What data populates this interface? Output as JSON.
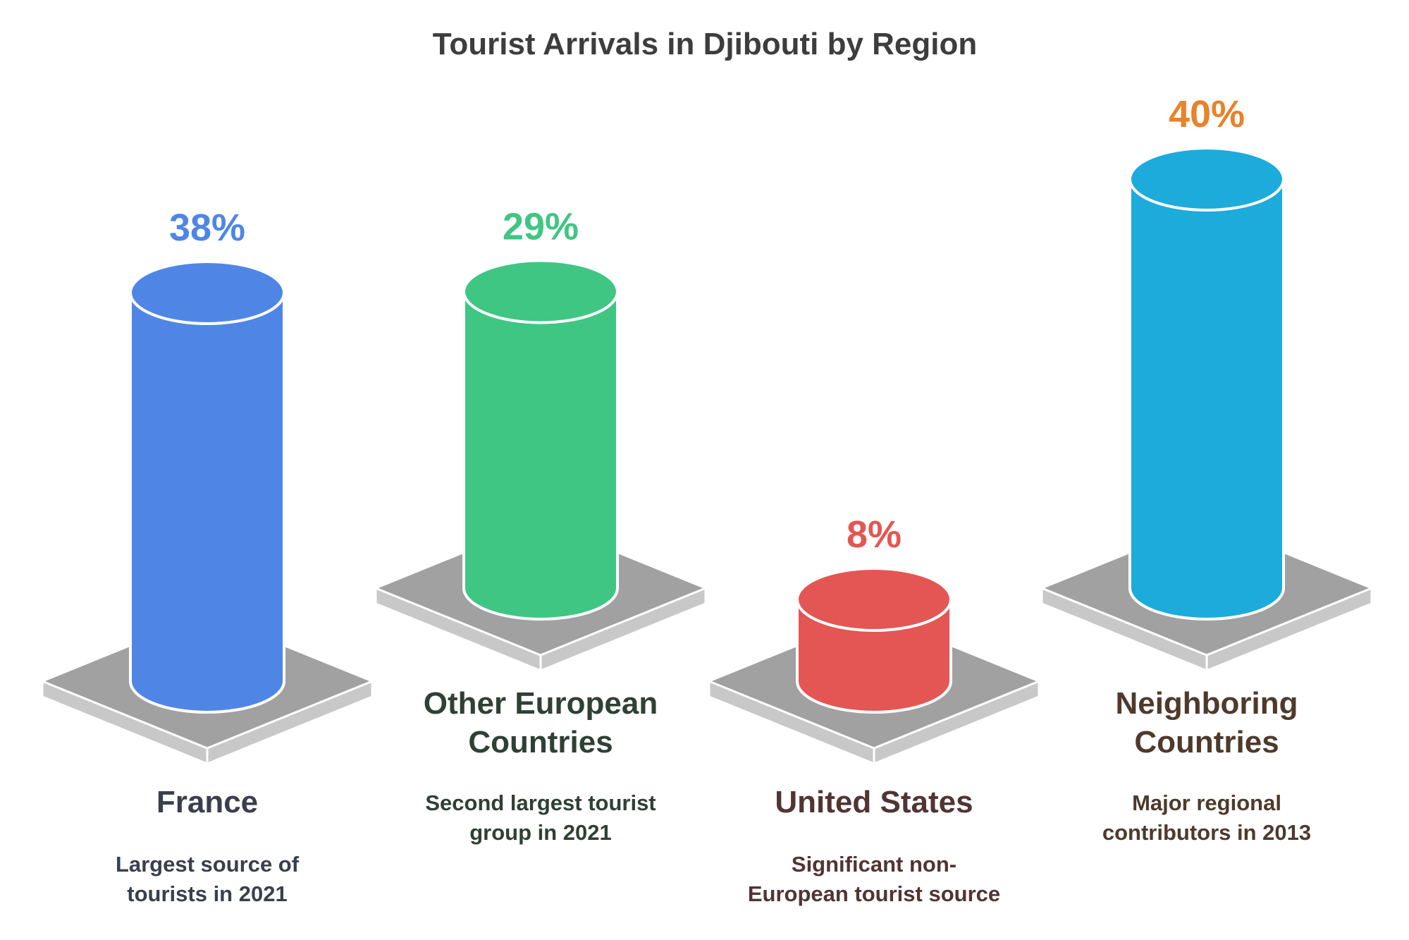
{
  "chart_data": {
    "type": "bar",
    "title": "Tourist Arrivals in Djibouti by Region",
    "categories": [
      "France",
      "Other European Countries",
      "United States",
      "Neighboring Countries"
    ],
    "values": [
      38,
      29,
      8,
      40
    ],
    "value_labels": [
      "38%",
      "29%",
      "8%",
      "40%"
    ],
    "descriptions": [
      [
        "Largest source of",
        "tourists in 2021"
      ],
      [
        "Second largest tourist",
        "group in 2021"
      ],
      [
        "Significant non-",
        "European tourist source"
      ],
      [
        "Major regional",
        "contributors in 2013"
      ]
    ],
    "category_lines": [
      [
        "France"
      ],
      [
        "Other European",
        "Countries"
      ],
      [
        "United States"
      ],
      [
        "Neighboring",
        "Countries"
      ]
    ],
    "unit": "%",
    "xlabel": "",
    "ylabel": "",
    "grid": false,
    "legend": "none",
    "colors": {
      "bars": [
        "#4f86e6",
        "#3fc683",
        "#e45653",
        "#1dabdb"
      ],
      "value_labels": [
        "#4f86e6",
        "#3fc683",
        "#e45653",
        "#e8832a"
      ],
      "category_labels": [
        "#3a3f4d",
        "#2f4035",
        "#523434",
        "#4e3a2c"
      ],
      "platform_top": "#a1a1a1",
      "platform_side": "#c8c8c8",
      "outline": "#ffffff"
    }
  }
}
